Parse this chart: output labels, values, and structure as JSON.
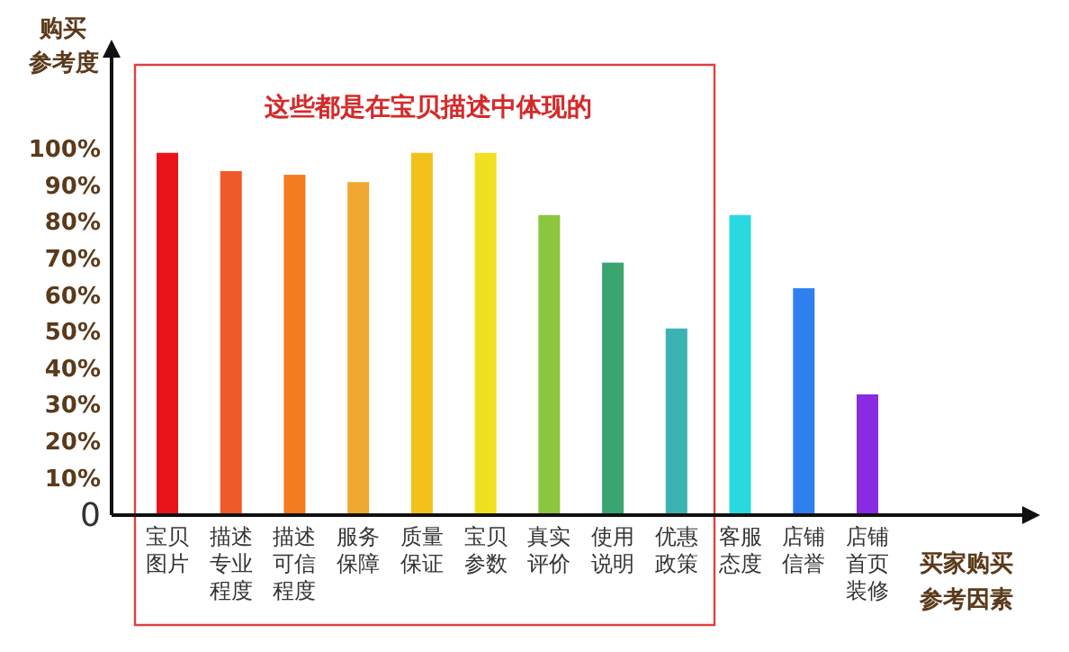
{
  "chart_data": {
    "type": "bar",
    "ylabel": "购买参考度",
    "xlabel": "买家购买参考因素",
    "annotations": [
      "这些都是在宝贝描述中体现的"
    ],
    "categories": [
      "宝贝图片",
      "描述专业程度",
      "描述可信程度",
      "服务保障",
      "质量保证",
      "宝贝参数",
      "真实评价",
      "使用说明",
      "优惠政策",
      "客服态度",
      "店铺信誉",
      "店铺首页装修"
    ],
    "values": [
      99,
      94,
      93,
      91,
      99,
      99,
      82,
      69,
      51,
      82,
      62,
      33
    ],
    "colors": [
      "#e8141a",
      "#f05a28",
      "#f47c20",
      "#f0a830",
      "#f2c21b",
      "#f0e020",
      "#8cc63f",
      "#3aa56f",
      "#3bb3b3",
      "#29d9e0",
      "#2f80ed",
      "#8a2be2"
    ],
    "ylim": [
      0,
      126
    ],
    "yticks": [
      {
        "value": 0,
        "label": "0"
      },
      {
        "value": 10,
        "label": "10%"
      },
      {
        "value": 20,
        "label": "20%"
      },
      {
        "value": 30,
        "label": "30%"
      },
      {
        "value": 40,
        "label": "40%"
      },
      {
        "value": 50,
        "label": "50%"
      },
      {
        "value": 60,
        "label": "60%"
      },
      {
        "value": 70,
        "label": "70%"
      },
      {
        "value": 80,
        "label": "80%"
      },
      {
        "value": 90,
        "label": "90%"
      },
      {
        "value": 100,
        "label": "100%"
      }
    ],
    "grid": false
  }
}
